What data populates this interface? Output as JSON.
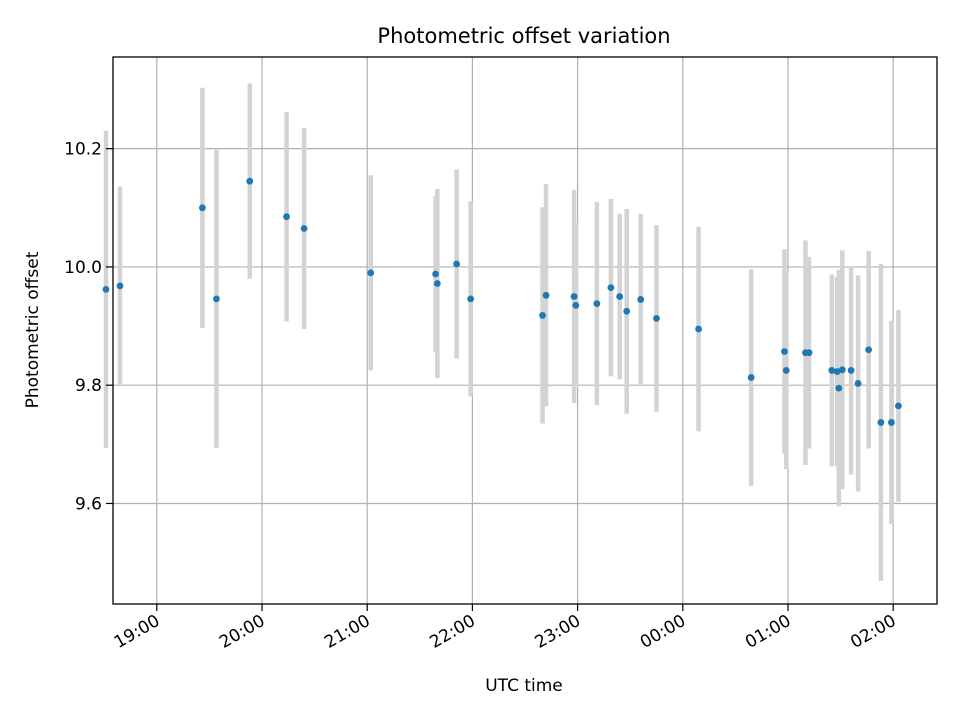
{
  "chart_data": {
    "type": "scatter",
    "title": "Photometric offset variation",
    "xlabel": "UTC time",
    "ylabel": "Photometric offset",
    "xlim": [
      "18:35",
      "02:25"
    ],
    "ylim": [
      9.43,
      10.355
    ],
    "x_ticks": [
      "19:00",
      "20:00",
      "21:00",
      "22:00",
      "23:00",
      "00:00",
      "01:00",
      "02:00"
    ],
    "y_ticks": [
      "9.6",
      "9.8",
      "10.0",
      "10.2"
    ],
    "grid": true,
    "colors": {
      "point": "#1f77b4",
      "error_bar": "#d3d3d3",
      "grid": "#b0b0b0"
    },
    "points": [
      {
        "x": "18:31",
        "y": 9.962,
        "err": 0.268
      },
      {
        "x": "18:39",
        "y": 9.968,
        "err": 0.168
      },
      {
        "x": "19:26",
        "y": 10.1,
        "err": 0.203
      },
      {
        "x": "19:34",
        "y": 9.946,
        "err": 0.252
      },
      {
        "x": "19:53",
        "y": 10.145,
        "err": 0.165
      },
      {
        "x": "20:14",
        "y": 10.085,
        "err": 0.177
      },
      {
        "x": "20:24",
        "y": 10.065,
        "err": 0.17
      },
      {
        "x": "21:02",
        "y": 9.99,
        "err": 0.165
      },
      {
        "x": "21:39",
        "y": 9.988,
        "err": 0.132
      },
      {
        "x": "21:40",
        "y": 9.972,
        "err": 0.16
      },
      {
        "x": "21:51",
        "y": 10.005,
        "err": 0.16
      },
      {
        "x": "21:59",
        "y": 9.946,
        "err": 0.165
      },
      {
        "x": "22:40",
        "y": 9.918,
        "err": 0.183
      },
      {
        "x": "22:42",
        "y": 9.952,
        "err": 0.188
      },
      {
        "x": "22:58",
        "y": 9.95,
        "err": 0.18
      },
      {
        "x": "22:59",
        "y": 9.935,
        "err": 0.14
      },
      {
        "x": "23:11",
        "y": 9.938,
        "err": 0.172
      },
      {
        "x": "23:19",
        "y": 9.965,
        "err": 0.15
      },
      {
        "x": "23:24",
        "y": 9.95,
        "err": 0.14
      },
      {
        "x": "23:28",
        "y": 9.925,
        "err": 0.173
      },
      {
        "x": "23:36",
        "y": 9.945,
        "err": 0.145
      },
      {
        "x": "23:45",
        "y": 9.913,
        "err": 0.158
      },
      {
        "x": "00:09",
        "y": 9.895,
        "err": 0.173
      },
      {
        "x": "00:39",
        "y": 9.813,
        "err": 0.183
      },
      {
        "x": "00:58",
        "y": 9.857,
        "err": 0.173
      },
      {
        "x": "00:59",
        "y": 9.825,
        "err": 0.167
      },
      {
        "x": "01:10",
        "y": 9.855,
        "err": 0.19
      },
      {
        "x": "01:12",
        "y": 9.855,
        "err": 0.162
      },
      {
        "x": "01:25",
        "y": 9.825,
        "err": 0.162
      },
      {
        "x": "01:28",
        "y": 9.823,
        "err": 0.16
      },
      {
        "x": "01:29",
        "y": 9.795,
        "err": 0.2
      },
      {
        "x": "01:31",
        "y": 9.826,
        "err": 0.202
      },
      {
        "x": "01:36",
        "y": 9.825,
        "err": 0.176
      },
      {
        "x": "01:40",
        "y": 9.803,
        "err": 0.183
      },
      {
        "x": "01:46",
        "y": 9.86,
        "err": 0.167
      },
      {
        "x": "01:53",
        "y": 9.737,
        "err": 0.268
      },
      {
        "x": "01:59",
        "y": 9.737,
        "err": 0.172
      },
      {
        "x": "02:03",
        "y": 9.765,
        "err": 0.162
      }
    ]
  }
}
